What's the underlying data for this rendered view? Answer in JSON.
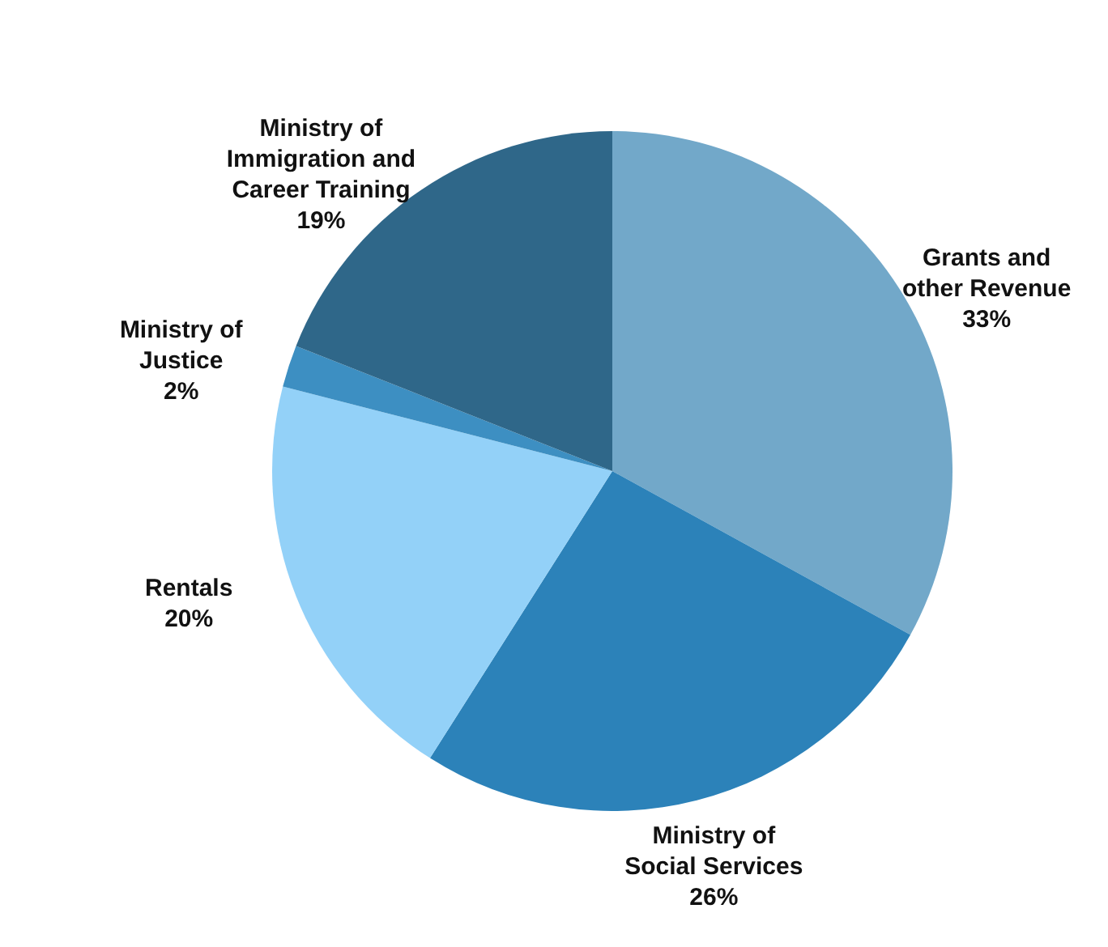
{
  "chart_data": {
    "type": "pie",
    "categories": [
      "Grants and other Revenue",
      "Ministry of Social Services",
      "Rentals",
      "Ministry of Justice",
      "Ministry of Immigration and Career Training"
    ],
    "values": [
      33,
      26,
      20,
      2,
      19
    ],
    "value_labels": [
      "33%",
      "26%",
      "20%",
      "2%",
      "19%"
    ],
    "colors": [
      "#72a8c9",
      "#2c82b9",
      "#93d1f8",
      "#3d8fc2",
      "#2f6789"
    ]
  }
}
